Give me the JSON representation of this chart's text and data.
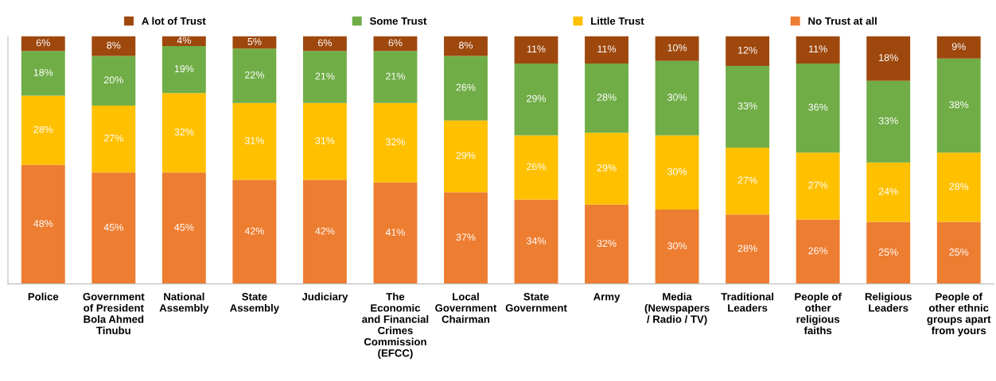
{
  "chart_data": {
    "type": "bar",
    "stacked": true,
    "ylim": [
      0,
      100
    ],
    "tick_labels": "x",
    "legend": "top",
    "categories": [
      "Police",
      "Government\nof President\nBola Ahmed\nTinubu",
      "National\nAssembly",
      "State\nAssembly",
      "Judiciary",
      "The\nEconomic\nand Financial\nCrimes\nCommission\n(EFCC)",
      "Local\nGovernment\nChairman",
      "State\nGovernment",
      "Army",
      "Media\n(Newspapers\n/ Radio / TV)",
      "Traditional\nLeaders",
      "People of\nother\nreligious\nfaiths",
      "Religious\nLeaders",
      "People of\nother ethnic\ngroups apart\nfrom yours"
    ],
    "series": [
      {
        "name": "No Trust at all",
        "color": "#ed7d31",
        "values": [
          48,
          45,
          45,
          42,
          42,
          41,
          37,
          34,
          32,
          30,
          28,
          26,
          25,
          25
        ],
        "value_labels": [
          "48%",
          "45%",
          "45%",
          "42%",
          "42%",
          "41%",
          "37%",
          "34%",
          "32%",
          "30%",
          "28%",
          "26%",
          "25%",
          "25%"
        ]
      },
      {
        "name": "Little Trust",
        "color": "#ffc000",
        "values": [
          28,
          27,
          32,
          31,
          31,
          32,
          29,
          26,
          29,
          30,
          27,
          27,
          24,
          28
        ],
        "value_labels": [
          "28%",
          "27%",
          "32%",
          "31%",
          "31%",
          "32%",
          "29%",
          "26%",
          "29%",
          "30%",
          "27%",
          "27%",
          "24%",
          "28%"
        ]
      },
      {
        "name": "Some Trust",
        "color": "#70ad47",
        "values": [
          18,
          20,
          19,
          22,
          21,
          21,
          26,
          29,
          28,
          30,
          33,
          36,
          33,
          38
        ],
        "value_labels": [
          "18%",
          "20%",
          "19%",
          "22%",
          "21%",
          "21%",
          "26%",
          "29%",
          "28%",
          "30%",
          "33%",
          "36%",
          "33%",
          "38%"
        ]
      },
      {
        "name": "A lot of Trust",
        "color": "#9e480e",
        "values": [
          6,
          8,
          4,
          5,
          6,
          6,
          8,
          11,
          11,
          10,
          12,
          11,
          18,
          9
        ],
        "value_labels": [
          "6%",
          "8%",
          "4%",
          "5%",
          "6%",
          "6%",
          "8%",
          "11%",
          "11%",
          "10%",
          "12%",
          "11%",
          "18%",
          "9%"
        ]
      }
    ]
  }
}
